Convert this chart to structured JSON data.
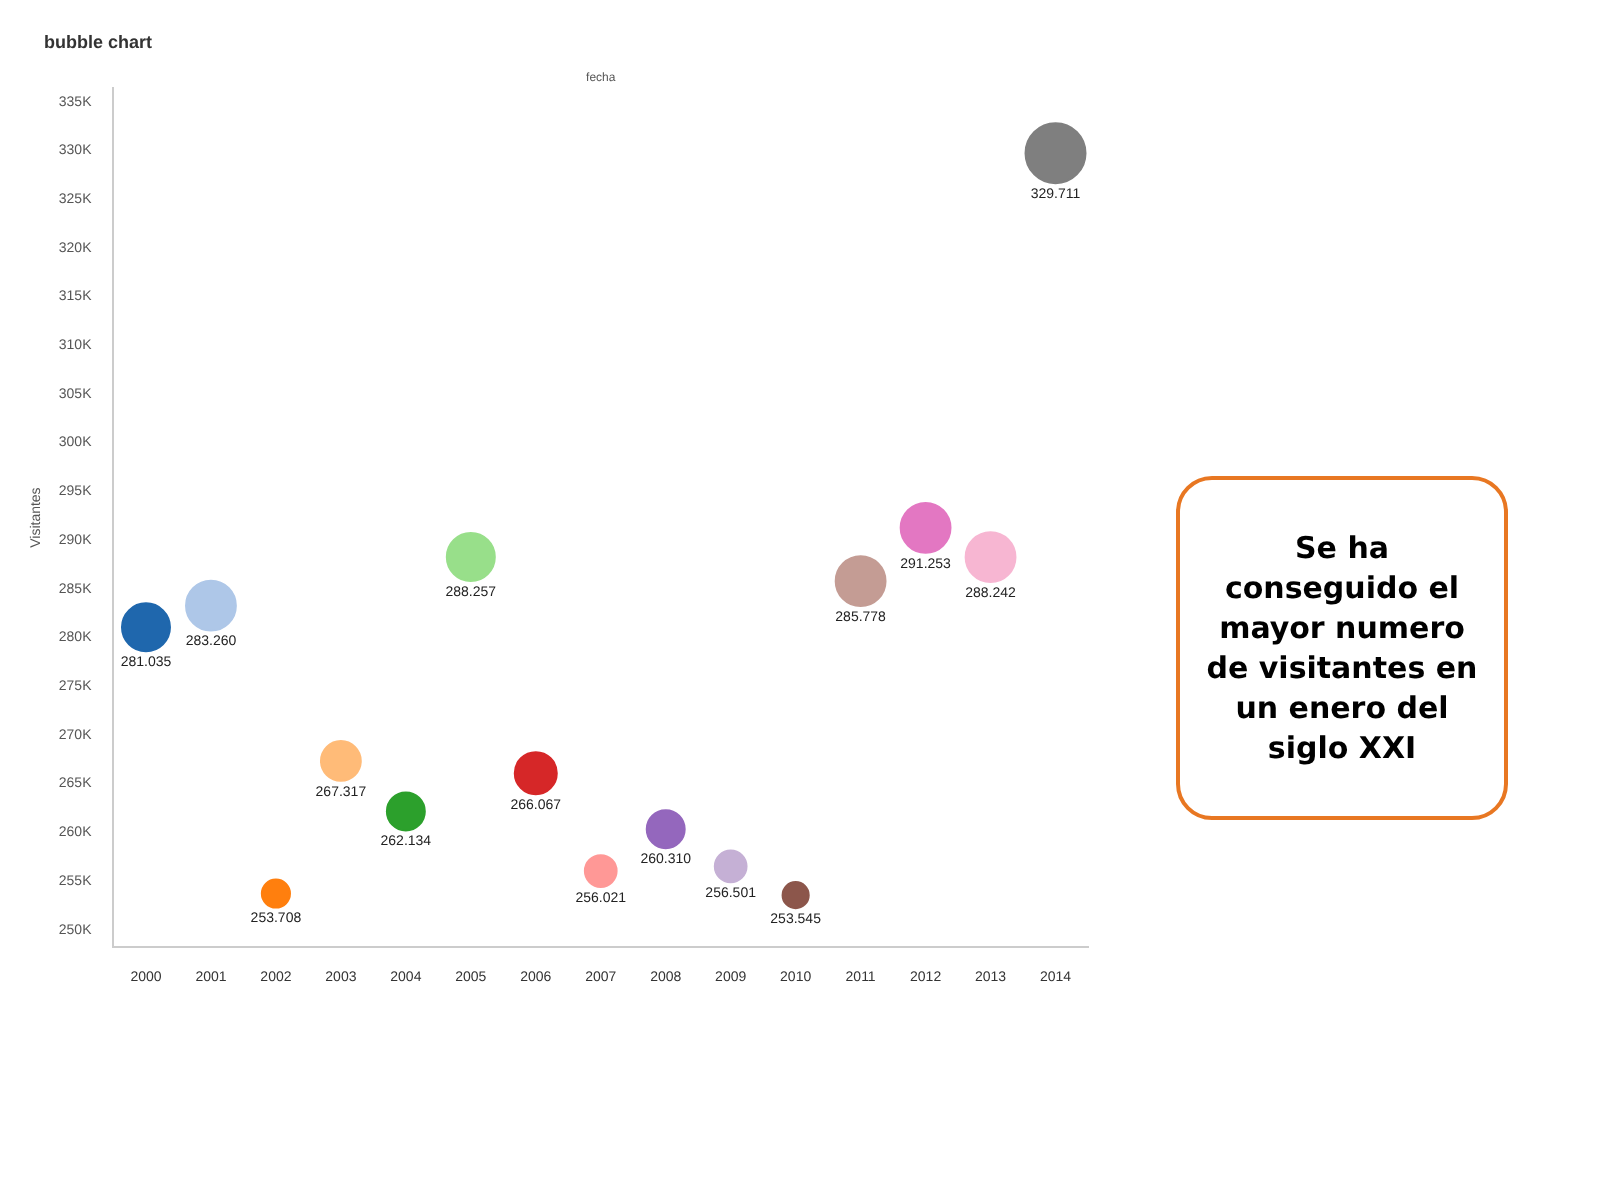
{
  "chart_data": {
    "type": "bubble",
    "title": "bubble chart",
    "xlabel": "fecha",
    "ylabel": "Visitantes",
    "categories": [
      "2000",
      "2001",
      "2002",
      "2003",
      "2004",
      "2005",
      "2006",
      "2007",
      "2008",
      "2009",
      "2010",
      "2011",
      "2012",
      "2013",
      "2014"
    ],
    "values": [
      281035,
      283260,
      253708,
      267317,
      262134,
      288257,
      266067,
      256021,
      260310,
      256501,
      253545,
      285778,
      291253,
      288242,
      329711
    ],
    "value_labels": [
      "281.035",
      "283.260",
      "253.708",
      "267.317",
      "262.134",
      "288.257",
      "266.067",
      "256.021",
      "260.310",
      "256.501",
      "253.545",
      "285.778",
      "291.253",
      "288.242",
      "329.711"
    ],
    "sizes": [
      0.64,
      0.69,
      0.22,
      0.44,
      0.4,
      0.64,
      0.49,
      0.28,
      0.4,
      0.28,
      0.19,
      0.69,
      0.69,
      0.69,
      1
    ],
    "colors": [
      "#1f67ad",
      "#aec7e8",
      "#ff7f0e",
      "#ffbb78",
      "#2ca02c",
      "#98df8a",
      "#d62728",
      "#ff9896",
      "#9467bd",
      "#c5b0d5",
      "#8c564b",
      "#c49c94",
      "#e377c2",
      "#f7b6d2",
      "#7f7f7f"
    ],
    "ylim": [
      248200,
      336400
    ],
    "yticks": [
      {
        "value": 250000,
        "label": "250K"
      },
      {
        "value": 255000,
        "label": "255K"
      },
      {
        "value": 260000,
        "label": "260K"
      },
      {
        "value": 265000,
        "label": "265K"
      },
      {
        "value": 270000,
        "label": "270K"
      },
      {
        "value": 275000,
        "label": "275K"
      },
      {
        "value": 280000,
        "label": "280K"
      },
      {
        "value": 285000,
        "label": "285K"
      },
      {
        "value": 290000,
        "label": "290K"
      },
      {
        "value": 295000,
        "label": "295K"
      },
      {
        "value": 300000,
        "label": "300K"
      },
      {
        "value": 305000,
        "label": "305K"
      },
      {
        "value": 310000,
        "label": "310K"
      },
      {
        "value": 315000,
        "label": "315K"
      },
      {
        "value": 320000,
        "label": "320K"
      },
      {
        "value": 325000,
        "label": "325K"
      },
      {
        "value": 330000,
        "label": "330K"
      },
      {
        "value": 335000,
        "label": "335K"
      }
    ],
    "marker": "circle",
    "grid": false,
    "legend": false,
    "annotations": [
      "Se ha conseguido el mayor numero de visitantes en un enero del siglo XXI"
    ]
  }
}
